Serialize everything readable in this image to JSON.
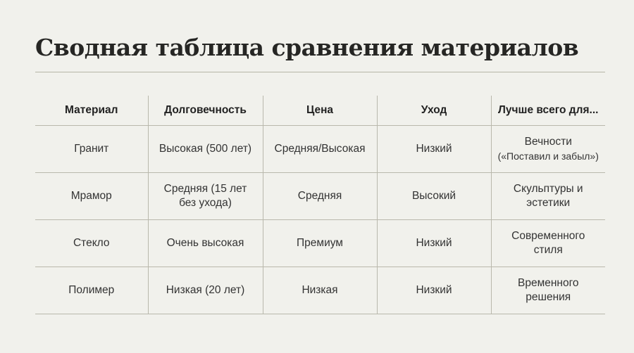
{
  "title": "Сводная таблица сравнения материалов",
  "table": {
    "headers": [
      "Материал",
      "Долговечность",
      "Цена",
      "Уход",
      "Лучше всего для..."
    ],
    "rows": [
      {
        "material": "Гранит",
        "durability": "Высокая (500 лет)",
        "price": "Средняя/Высокая",
        "care": "Низкий",
        "best_for": "Вечности",
        "best_for_note": "(«Поставил и забыл»)"
      },
      {
        "material": "Мрамор",
        "durability": "Средняя (15 лет без ухода)",
        "price": "Средняя",
        "care": "Высокий",
        "best_for": "Скульптуры и эстетики",
        "best_for_note": ""
      },
      {
        "material": "Стекло",
        "durability": "Очень высокая",
        "price": "Премиум",
        "care": "Низкий",
        "best_for": "Современного стиля",
        "best_for_note": ""
      },
      {
        "material": "Полимер",
        "durability": "Низкая (20 лет)",
        "price": "Низкая",
        "care": "Низкий",
        "best_for": "Временного решения",
        "best_for_note": ""
      }
    ]
  }
}
